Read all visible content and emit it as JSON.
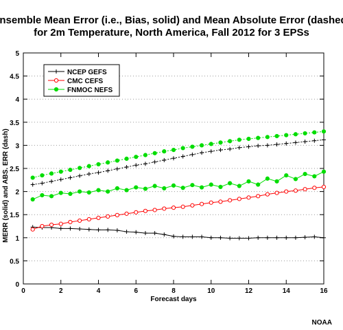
{
  "chart_data": {
    "type": "line",
    "title_line1": "Ensemble Mean Error (i.e., Bias, solid) and Mean Absolute Error (dashed)",
    "title_line2": "for 2m Temperature, North America, Fall 2012 for 3 EPSs",
    "xlabel": "Forecast days",
    "ylabel": "MERR (solid) and ABS. ERR (dash)",
    "xlim": [
      0,
      16
    ],
    "ylim": [
      0,
      5
    ],
    "xticks": [
      "0",
      "2",
      "4",
      "6",
      "8",
      "10",
      "12",
      "14",
      "16"
    ],
    "yticks": [
      "0",
      "0.5",
      "1",
      "1.5",
      "2",
      "2.5",
      "3",
      "3.5",
      "4",
      "4.5",
      "5"
    ],
    "grid": "horizontal dotted",
    "legend_position": "top-left",
    "x": [
      0.5,
      1,
      1.5,
      2,
      2.5,
      3,
      3.5,
      4,
      4.5,
      5,
      5.5,
      6,
      6.5,
      7,
      7.5,
      8,
      8.5,
      9,
      9.5,
      10,
      10.5,
      11,
      11.5,
      12,
      12.5,
      13,
      13.5,
      14,
      14.5,
      15,
      15.5,
      16
    ],
    "series": [
      {
        "name": "NCEP GEFS",
        "color": "#000000",
        "marker": "plus",
        "bias": [
          1.23,
          1.22,
          1.22,
          1.2,
          1.2,
          1.19,
          1.18,
          1.17,
          1.17,
          1.16,
          1.13,
          1.12,
          1.1,
          1.1,
          1.07,
          1.03,
          1.02,
          1.02,
          1.02,
          1.0,
          1.0,
          0.99,
          0.99,
          0.99,
          1.0,
          1.0,
          1.0,
          1.0,
          1.0,
          1.01,
          1.02,
          1.0
        ],
        "mae": [
          2.15,
          2.18,
          2.22,
          2.26,
          2.3,
          2.34,
          2.38,
          2.41,
          2.45,
          2.49,
          2.53,
          2.57,
          2.6,
          2.64,
          2.68,
          2.72,
          2.76,
          2.8,
          2.84,
          2.87,
          2.9,
          2.92,
          2.95,
          2.97,
          2.99,
          3.0,
          3.02,
          3.04,
          3.06,
          3.08,
          3.1,
          3.12
        ]
      },
      {
        "name": "CMC CEFS",
        "color": "#ff0000",
        "marker": "open-circle",
        "bias": [
          1.18,
          1.25,
          1.28,
          1.3,
          1.34,
          1.37,
          1.4,
          1.43,
          1.46,
          1.49,
          1.52,
          1.55,
          1.58,
          1.6,
          1.63,
          1.65,
          1.67,
          1.7,
          1.73,
          1.76,
          1.78,
          1.81,
          1.84,
          1.87,
          1.9,
          1.94,
          1.97,
          2.0,
          2.02,
          2.05,
          2.08,
          2.1
        ]
      },
      {
        "name": "FNMOC NEFS",
        "color": "#00dd00",
        "marker": "filled-circle",
        "bias": [
          1.83,
          1.92,
          1.9,
          1.97,
          1.95,
          2.0,
          1.98,
          2.03,
          2.0,
          2.07,
          2.03,
          2.09,
          2.06,
          2.12,
          2.07,
          2.13,
          2.08,
          2.14,
          2.09,
          2.15,
          2.1,
          2.18,
          2.12,
          2.22,
          2.15,
          2.28,
          2.22,
          2.35,
          2.27,
          2.38,
          2.33,
          2.43
        ],
        "mae": [
          2.3,
          2.35,
          2.39,
          2.43,
          2.47,
          2.51,
          2.55,
          2.59,
          2.63,
          2.67,
          2.71,
          2.75,
          2.79,
          2.83,
          2.87,
          2.9,
          2.94,
          2.97,
          3.0,
          3.03,
          3.06,
          3.09,
          3.12,
          3.14,
          3.16,
          3.18,
          3.2,
          3.22,
          3.24,
          3.26,
          3.28,
          3.3
        ]
      }
    ]
  },
  "legend": {
    "items": [
      "NCEP GEFS",
      "CMC CEFS",
      "FNMOC NEFS"
    ]
  },
  "source_label": "NOAA"
}
